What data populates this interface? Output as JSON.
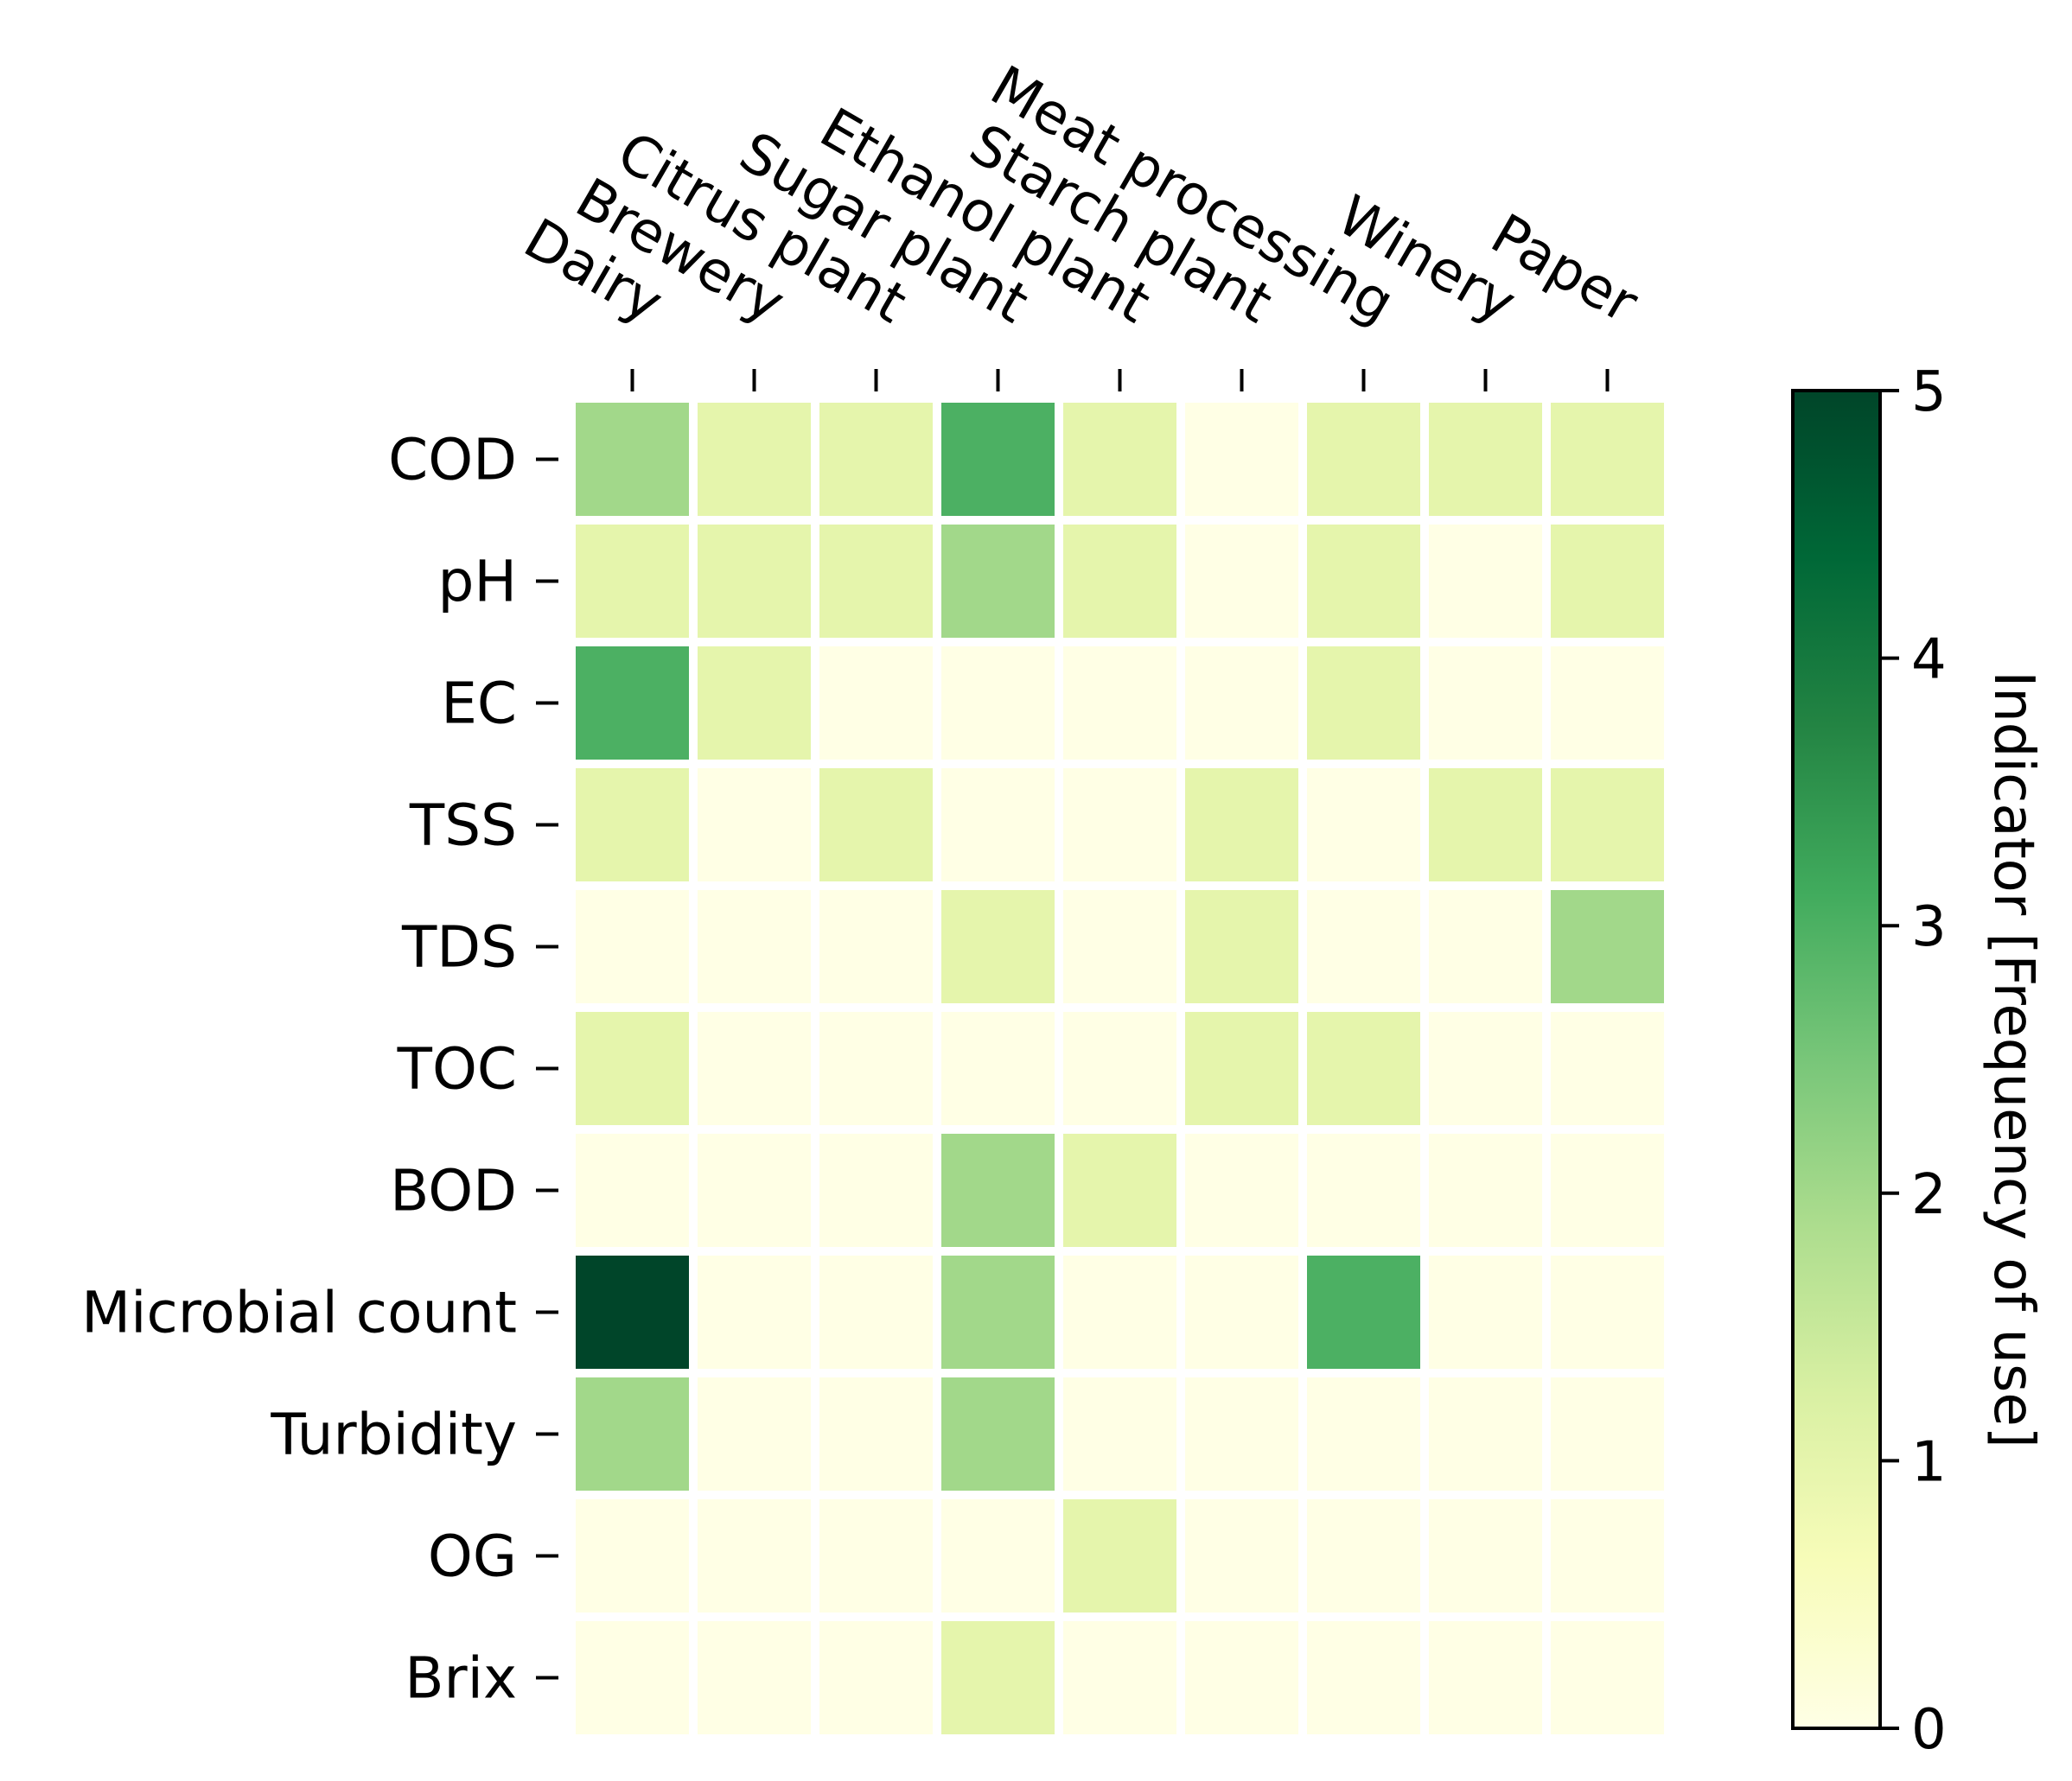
{
  "chart_data": {
    "type": "heatmap",
    "title": "",
    "columns": [
      "Dairy",
      "Brewery",
      "Citrus plant",
      "Sugar plant",
      "Ethanol plant",
      "Starch plant",
      "Meat processing",
      "Winery",
      "Paper"
    ],
    "rows": [
      "COD",
      "pH",
      "EC",
      "TSS",
      "TDS",
      "TOC",
      "BOD",
      "Microbial count",
      "Turbidity",
      "OG",
      "Brix"
    ],
    "values": [
      [
        2,
        1,
        1,
        3,
        1,
        0,
        1,
        1,
        1
      ],
      [
        1,
        1,
        1,
        2,
        1,
        0,
        1,
        0,
        1
      ],
      [
        3,
        1,
        0,
        0,
        0,
        0,
        1,
        0,
        0
      ],
      [
        1,
        0,
        1,
        0,
        0,
        1,
        0,
        1,
        1
      ],
      [
        0,
        0,
        0,
        1,
        0,
        1,
        0,
        0,
        2
      ],
      [
        1,
        0,
        0,
        0,
        0,
        1,
        1,
        0,
        0
      ],
      [
        0,
        0,
        0,
        2,
        1,
        0,
        0,
        0,
        0
      ],
      [
        5,
        0,
        0,
        2,
        0,
        0,
        3,
        0,
        0
      ],
      [
        2,
        0,
        0,
        2,
        0,
        0,
        0,
        0,
        0
      ],
      [
        0,
        0,
        0,
        0,
        1,
        0,
        0,
        0,
        0
      ],
      [
        0,
        0,
        0,
        1,
        0,
        0,
        0,
        0,
        0
      ]
    ],
    "colormap": "YlGn",
    "colorbar": {
      "label": "Indicator [Frequency of use]",
      "range": [
        0,
        5
      ],
      "ticks": [
        "0",
        "1",
        "2",
        "3",
        "4",
        "5"
      ],
      "stops": [
        "#ffffe5",
        "#f7fcb9",
        "#d9f0a3",
        "#addd8e",
        "#78c679",
        "#41ab5d",
        "#238443",
        "#006837",
        "#004529"
      ]
    },
    "cell_gap_color": "#ffffff"
  }
}
